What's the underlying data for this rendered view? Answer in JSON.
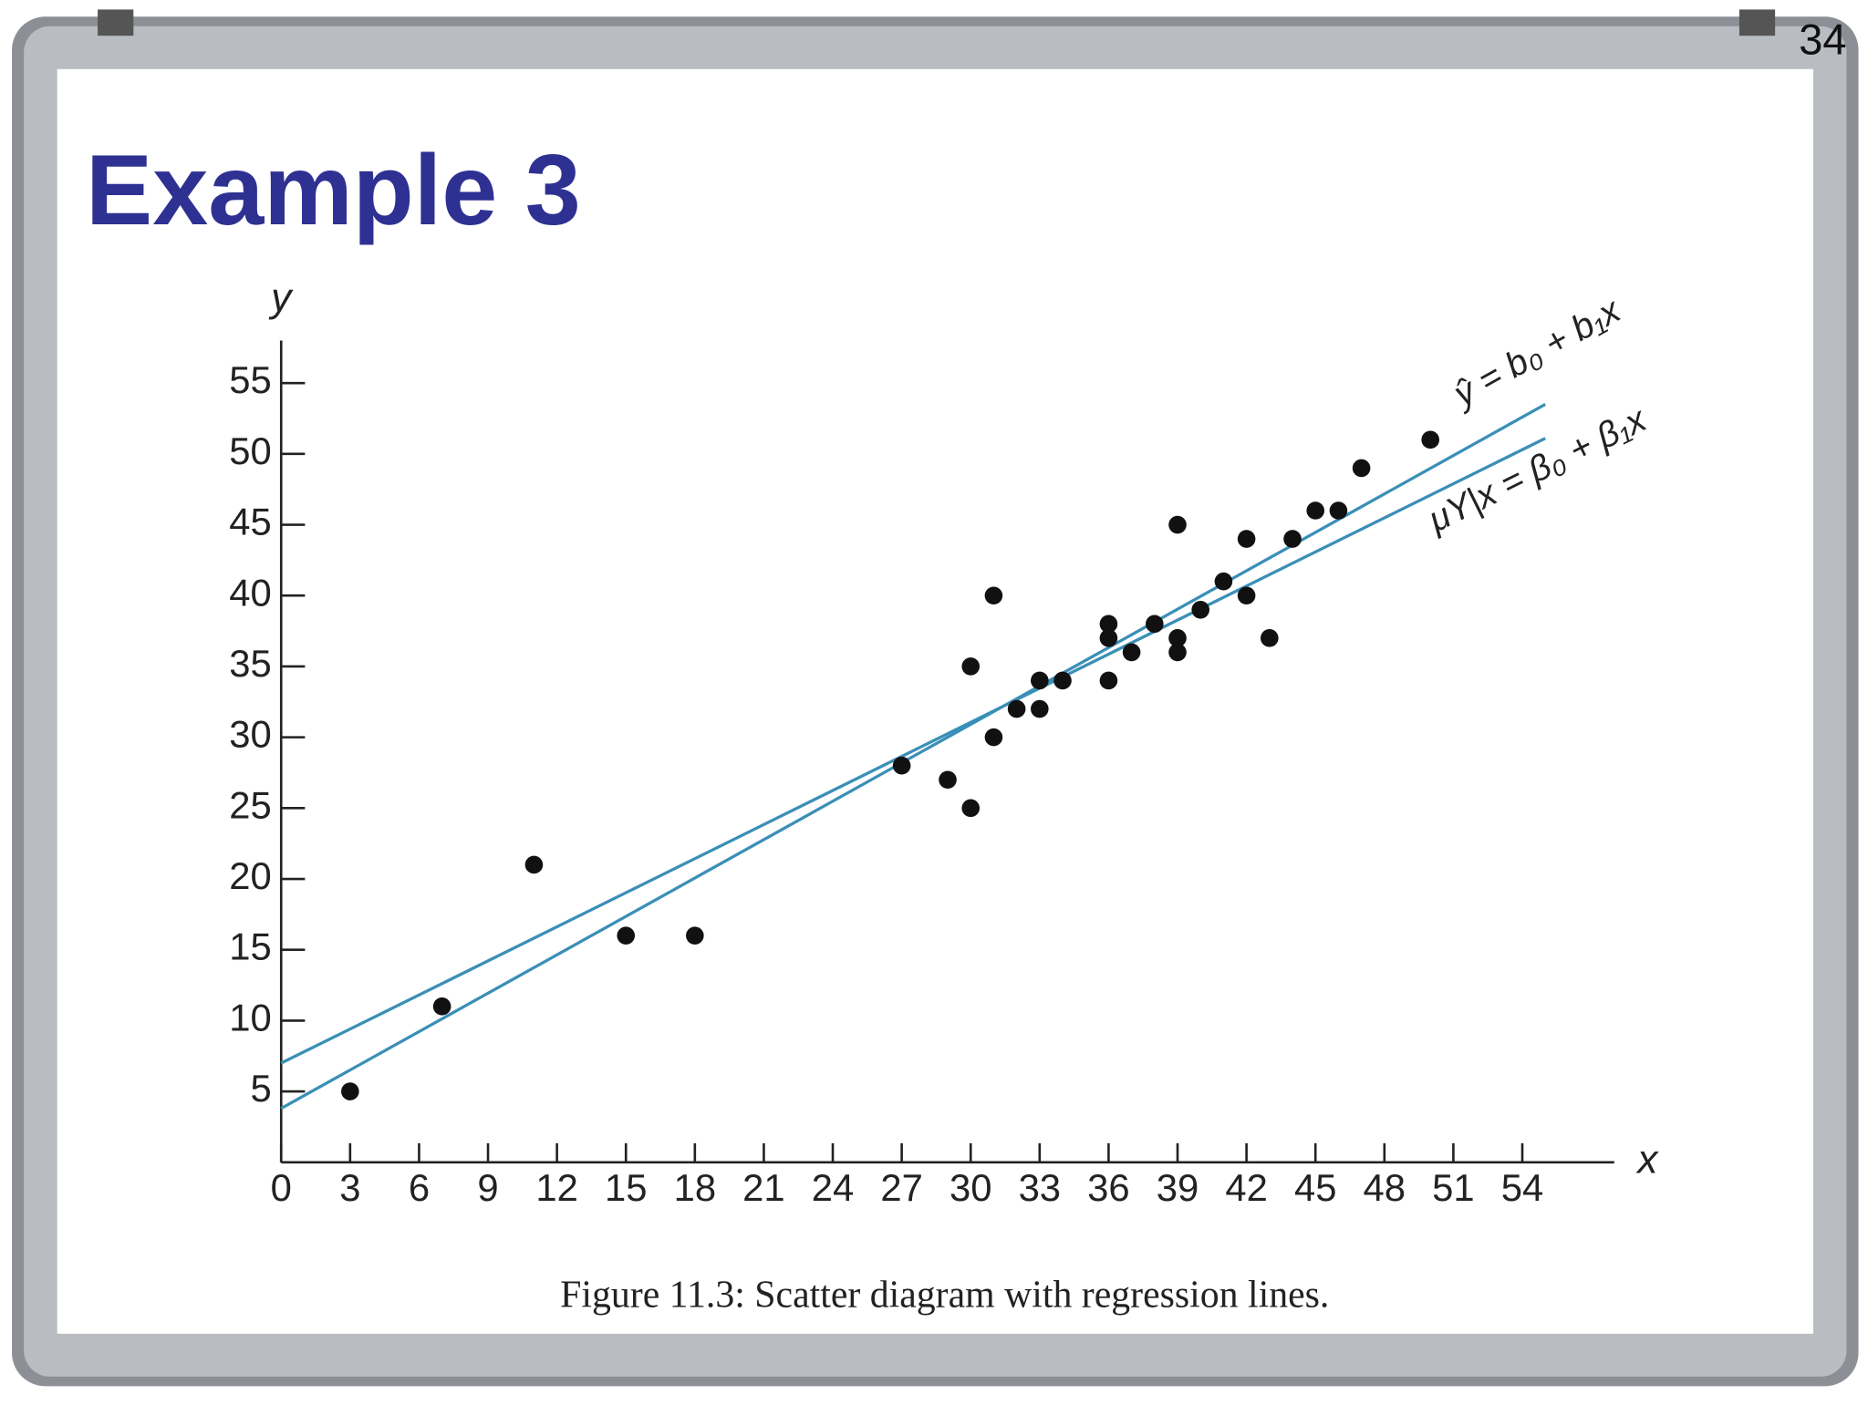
{
  "page_number": "34",
  "slide_title": "Example 3",
  "chart_data": {
    "type": "scatter",
    "caption": "Figure 11.3: Scatter diagram with regression lines.",
    "x_label": "x",
    "y_label": "y",
    "color": "#111111",
    "x": [
      3,
      7,
      11,
      15,
      18,
      27,
      29,
      30,
      30,
      31,
      31,
      32,
      33,
      33,
      34,
      36,
      36,
      36,
      37,
      38,
      39,
      39,
      39,
      40,
      41,
      42,
      42,
      43,
      44,
      45,
      46,
      47,
      50
    ],
    "values": [
      5,
      11,
      21,
      16,
      16,
      28,
      27,
      25,
      35,
      30,
      40,
      32,
      34,
      32,
      34,
      38,
      37,
      34,
      36,
      38,
      45,
      37,
      36,
      39,
      41,
      44,
      40,
      37,
      44,
      46,
      46,
      49,
      51
    ],
    "lines": [
      {
        "name": "ŷ = b₀ + b₁x",
        "color": "#3a8fb7",
        "x": [
          0,
          55
        ],
        "values": [
          3.8,
          53.5
        ]
      },
      {
        "name": "μY|x = β₀ + β₁x",
        "color": "#3a8fb7",
        "x": [
          0,
          55
        ],
        "values": [
          7.0,
          51.1
        ]
      }
    ],
    "xlim": [
      0,
      58
    ],
    "ylim": [
      0,
      58
    ],
    "xticks": [
      0,
      3,
      6,
      9,
      12,
      15,
      18,
      21,
      24,
      27,
      30,
      33,
      36,
      39,
      42,
      45,
      48,
      51,
      54
    ],
    "yticks": [
      5,
      10,
      15,
      20,
      25,
      30,
      35,
      40,
      45,
      50,
      55
    ],
    "grid": false
  }
}
